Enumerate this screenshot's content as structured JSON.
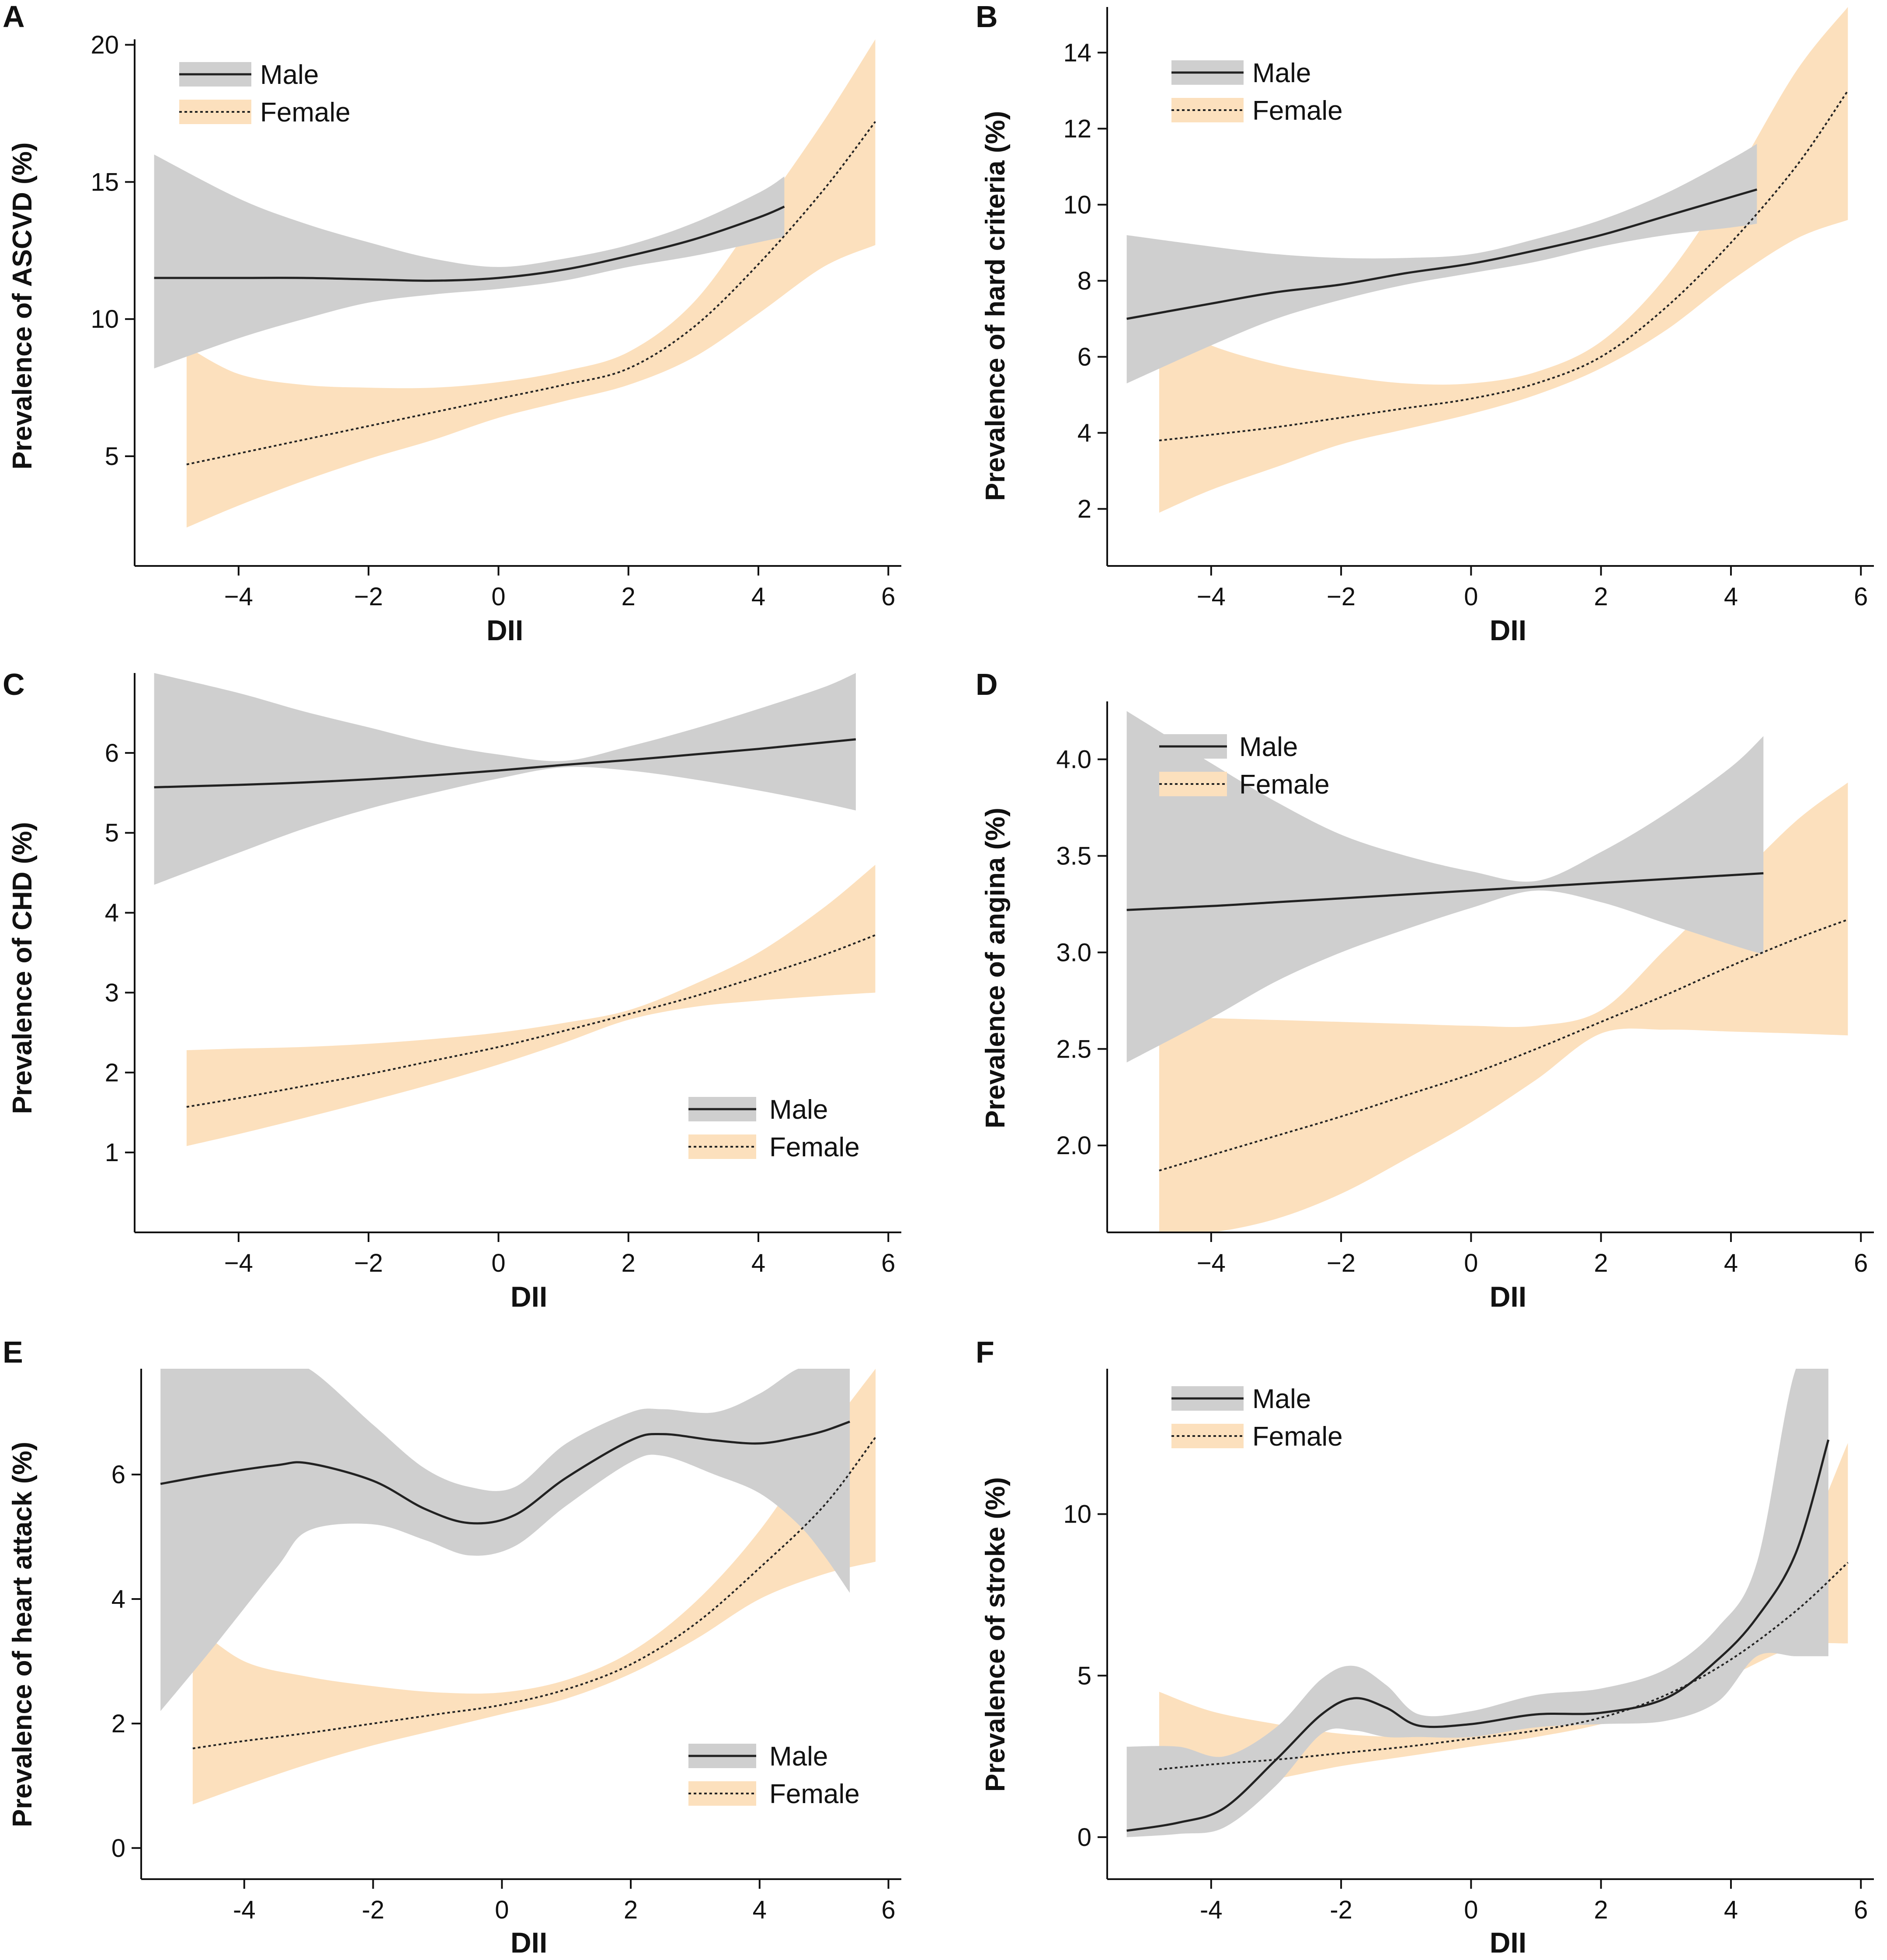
{
  "colors": {
    "male_band": "#cfcfcf",
    "female_band": "#fce0bd",
    "male_line": "#222222",
    "female_line": "#222222",
    "axis": "#111111"
  },
  "chart_data": [
    {
      "panel": "A",
      "type": "line",
      "xlabel": "DII",
      "ylabel": "Prevalence of ASCVD (%)",
      "xlim": [
        -5.6,
        6.2
      ],
      "ylim": [
        1.0,
        20.2
      ],
      "xticks": [
        -4,
        -2,
        0,
        2,
        4,
        6
      ],
      "xtick_labels": [
        "−4",
        "−2",
        "0",
        "2",
        "4",
        "6"
      ],
      "yticks": [
        5,
        10,
        15,
        20
      ],
      "ytick_labels": [
        "5",
        "10",
        "15",
        "20"
      ],
      "legend": {
        "position": "top-left",
        "entries": [
          "Male",
          "Female"
        ]
      },
      "series": [
        {
          "name": "Male",
          "style": "solid",
          "x": [
            -5.3,
            -4,
            -3,
            -2,
            -1,
            0,
            1,
            2,
            3,
            4,
            4.4
          ],
          "y": [
            11.5,
            11.5,
            11.5,
            11.45,
            11.4,
            11.5,
            11.8,
            12.3,
            12.9,
            13.7,
            14.1
          ],
          "lower": [
            8.2,
            9.3,
            10.0,
            10.6,
            10.9,
            11.1,
            11.4,
            11.9,
            12.3,
            12.8,
            13.0
          ],
          "upper": [
            16.0,
            14.4,
            13.5,
            12.8,
            12.2,
            11.9,
            12.2,
            12.7,
            13.5,
            14.6,
            15.2
          ]
        },
        {
          "name": "Female",
          "style": "dotted",
          "x": [
            -4.8,
            -4,
            -3,
            -2,
            -1,
            0,
            1,
            2,
            3,
            4,
            5,
            5.8
          ],
          "y": [
            4.7,
            5.1,
            5.6,
            6.1,
            6.6,
            7.1,
            7.6,
            8.2,
            9.7,
            12.0,
            14.7,
            17.2
          ],
          "lower": [
            2.4,
            3.2,
            4.1,
            4.9,
            5.6,
            6.4,
            7.0,
            7.6,
            8.6,
            10.2,
            11.9,
            12.7
          ],
          "upper": [
            9.0,
            8.0,
            7.6,
            7.5,
            7.5,
            7.7,
            8.1,
            8.8,
            10.6,
            13.8,
            17.2,
            20.2
          ]
        }
      ]
    },
    {
      "panel": "B",
      "type": "line",
      "xlabel": "DII",
      "ylabel": "Prevalence of hard criteria (%)",
      "xlim": [
        -5.6,
        6.2
      ],
      "ylim": [
        0.5,
        15.2
      ],
      "xticks": [
        -4,
        -2,
        0,
        2,
        4,
        6
      ],
      "xtick_labels": [
        "−4",
        "−2",
        "0",
        "2",
        "4",
        "6"
      ],
      "yticks": [
        2,
        4,
        6,
        8,
        10,
        12,
        14
      ],
      "ytick_labels": [
        "2",
        "4",
        "6",
        "8",
        "10",
        "12",
        "14"
      ],
      "legend": {
        "position": "top-left",
        "entries": [
          "Male",
          "Female"
        ]
      },
      "series": [
        {
          "name": "Male",
          "style": "solid",
          "x": [
            -5.3,
            -4,
            -3,
            -2,
            -1,
            0,
            1,
            2,
            3,
            4,
            4.4
          ],
          "y": [
            7.0,
            7.4,
            7.7,
            7.9,
            8.2,
            8.45,
            8.8,
            9.2,
            9.7,
            10.2,
            10.4
          ],
          "lower": [
            5.3,
            6.3,
            7.0,
            7.5,
            7.9,
            8.2,
            8.5,
            8.9,
            9.2,
            9.4,
            9.5
          ],
          "upper": [
            9.2,
            8.9,
            8.7,
            8.6,
            8.6,
            8.7,
            9.1,
            9.6,
            10.3,
            11.2,
            11.6
          ]
        },
        {
          "name": "Female",
          "style": "dotted",
          "x": [
            -4.8,
            -4,
            -3,
            -2,
            -1,
            0,
            1,
            2,
            3,
            4,
            5,
            5.8
          ],
          "y": [
            3.8,
            3.95,
            4.15,
            4.4,
            4.65,
            4.9,
            5.3,
            6.0,
            7.3,
            9.0,
            11.0,
            13.0
          ],
          "lower": [
            1.9,
            2.5,
            3.1,
            3.7,
            4.1,
            4.5,
            5.0,
            5.7,
            6.7,
            8.0,
            9.1,
            9.6
          ],
          "upper": [
            7.0,
            6.3,
            5.8,
            5.5,
            5.3,
            5.3,
            5.6,
            6.4,
            8.1,
            10.6,
            13.5,
            15.2
          ]
        }
      ]
    },
    {
      "panel": "C",
      "type": "line",
      "xlabel": "DII",
      "ylabel": "Prevalence of CHD (%)",
      "xlim": [
        -5.6,
        6.2
      ],
      "ylim": [
        0.0,
        7.0
      ],
      "xticks": [
        -4,
        -2,
        0,
        2,
        4,
        6
      ],
      "xtick_labels": [
        "−4",
        "−2",
        "0",
        "2",
        "4",
        "6"
      ],
      "yticks": [
        1,
        2,
        3,
        4,
        5,
        6
      ],
      "ytick_labels": [
        "1",
        "2",
        "3",
        "4",
        "5",
        "6"
      ],
      "legend": {
        "position": "bottom-right",
        "entries": [
          "Male",
          "Female"
        ]
      },
      "series": [
        {
          "name": "Male",
          "style": "solid",
          "x": [
            -5.3,
            -4,
            -3,
            -2,
            -1,
            0,
            1,
            2,
            3,
            4,
            5,
            5.5
          ],
          "y": [
            5.57,
            5.6,
            5.63,
            5.67,
            5.72,
            5.78,
            5.85,
            5.91,
            5.98,
            6.05,
            6.13,
            6.17
          ],
          "lower": [
            4.35,
            4.75,
            5.05,
            5.3,
            5.5,
            5.68,
            5.82,
            5.78,
            5.67,
            5.53,
            5.37,
            5.28
          ],
          "upper": [
            7.0,
            6.75,
            6.52,
            6.32,
            6.12,
            5.98,
            5.9,
            6.08,
            6.3,
            6.55,
            6.82,
            7.0
          ]
        },
        {
          "name": "Female",
          "style": "dotted",
          "x": [
            -4.8,
            -4,
            -3,
            -2,
            -1,
            0,
            1,
            2,
            3,
            4,
            5,
            5.8
          ],
          "y": [
            1.57,
            1.68,
            1.83,
            1.98,
            2.15,
            2.32,
            2.52,
            2.73,
            2.95,
            3.2,
            3.47,
            3.72
          ],
          "lower": [
            1.08,
            1.23,
            1.43,
            1.64,
            1.86,
            2.1,
            2.37,
            2.66,
            2.82,
            2.9,
            2.96,
            3.0
          ],
          "upper": [
            2.28,
            2.3,
            2.32,
            2.36,
            2.42,
            2.5,
            2.62,
            2.78,
            3.1,
            3.5,
            4.06,
            4.6
          ]
        }
      ]
    },
    {
      "panel": "D",
      "type": "line",
      "xlabel": "DII",
      "ylabel": "Prevalence of angina (%)",
      "xlim": [
        -5.6,
        6.2
      ],
      "ylim": [
        1.55,
        4.3
      ],
      "xticks": [
        -4,
        -2,
        0,
        2,
        4,
        6
      ],
      "xtick_labels": [
        "−4",
        "−2",
        "0",
        "2",
        "4",
        "6"
      ],
      "yticks": [
        2.0,
        2.5,
        3.0,
        3.5,
        4.0
      ],
      "ytick_labels": [
        "2.0",
        "2.5",
        "3.0",
        "3.5",
        "4.0"
      ],
      "legend": {
        "position": "top-left",
        "entries": [
          "Male",
          "Female"
        ]
      },
      "series": [
        {
          "name": "Male",
          "style": "solid",
          "x": [
            -5.3,
            -4,
            -3,
            -2,
            -1,
            0,
            1,
            2,
            3,
            4,
            4.5
          ],
          "y": [
            3.22,
            3.24,
            3.26,
            3.28,
            3.3,
            3.32,
            3.34,
            3.36,
            3.38,
            3.4,
            3.41
          ],
          "lower": [
            2.43,
            2.66,
            2.85,
            3.0,
            3.12,
            3.23,
            3.32,
            3.26,
            3.15,
            3.04,
            2.99
          ],
          "upper": [
            4.25,
            3.98,
            3.78,
            3.61,
            3.5,
            3.42,
            3.37,
            3.52,
            3.72,
            3.96,
            4.12
          ]
        },
        {
          "name": "Female",
          "style": "dotted",
          "x": [
            -4.8,
            -4,
            -3,
            -2,
            -1,
            0,
            1,
            2,
            3,
            4,
            5,
            5.8
          ],
          "y": [
            1.87,
            1.95,
            2.05,
            2.15,
            2.26,
            2.37,
            2.5,
            2.64,
            2.78,
            2.93,
            3.07,
            3.17
          ],
          "lower": [
            1.55,
            1.55,
            1.62,
            1.75,
            1.93,
            2.12,
            2.34,
            2.58,
            2.6,
            2.59,
            2.58,
            2.57
          ],
          "upper": [
            2.67,
            2.66,
            2.65,
            2.64,
            2.63,
            2.62,
            2.62,
            2.7,
            3.02,
            3.35,
            3.68,
            3.88
          ]
        }
      ]
    },
    {
      "panel": "E",
      "type": "line",
      "xlabel": "DII",
      "ylabel": "Prevalence of heart attack (%)",
      "xlim": [
        -5.6,
        6.2
      ],
      "ylim": [
        -0.5,
        7.7
      ],
      "xticks": [
        -4,
        -2,
        0,
        2,
        4,
        6
      ],
      "xtick_labels": [
        "-4",
        "-2",
        "0",
        "2",
        "4",
        "6"
      ],
      "yticks": [
        0,
        2,
        4,
        6
      ],
      "ytick_labels": [
        "0",
        "2",
        "4",
        "6"
      ],
      "legend": {
        "position": "bottom-right",
        "entries": [
          "Male",
          "Female"
        ]
      },
      "series": [
        {
          "name": "Male",
          "style": "solid",
          "x": [
            -5.3,
            -4.5,
            -3.5,
            -3,
            -2,
            -1.2,
            -0.5,
            0.2,
            1,
            2,
            2.5,
            3.3,
            4,
            4.6,
            5,
            5.4
          ],
          "y": [
            5.85,
            6.0,
            6.15,
            6.18,
            5.9,
            5.45,
            5.22,
            5.35,
            5.95,
            6.55,
            6.65,
            6.55,
            6.5,
            6.6,
            6.7,
            6.85
          ],
          "lower": [
            2.2,
            3.2,
            4.5,
            5.1,
            5.2,
            4.95,
            4.7,
            4.85,
            5.5,
            6.2,
            6.3,
            6.0,
            5.7,
            5.2,
            4.7,
            4.1
          ],
          "upper": [
            7.7,
            7.7,
            7.7,
            7.7,
            6.8,
            6.1,
            5.8,
            5.8,
            6.5,
            7.0,
            7.05,
            7.0,
            7.3,
            7.7,
            7.7,
            7.7
          ]
        },
        {
          "name": "Female",
          "style": "dotted",
          "x": [
            -4.8,
            -4,
            -3,
            -2,
            -1,
            0,
            1,
            2,
            3,
            4,
            5,
            5.8
          ],
          "y": [
            1.6,
            1.72,
            1.85,
            2.0,
            2.15,
            2.3,
            2.55,
            2.95,
            3.6,
            4.5,
            5.5,
            6.6
          ],
          "lower": [
            0.7,
            1.0,
            1.35,
            1.65,
            1.9,
            2.15,
            2.4,
            2.8,
            3.35,
            4.0,
            4.4,
            4.6
          ],
          "upper": [
            3.6,
            3.0,
            2.75,
            2.6,
            2.5,
            2.5,
            2.7,
            3.15,
            3.95,
            5.1,
            6.6,
            7.7
          ]
        }
      ]
    },
    {
      "panel": "F",
      "type": "line",
      "xlabel": "DII",
      "ylabel": "Prevalence of stroke (%)",
      "xlim": [
        -5.6,
        6.2
      ],
      "ylim": [
        -1.3,
        14.5
      ],
      "xticks": [
        -4,
        -2,
        0,
        2,
        4,
        6
      ],
      "xtick_labels": [
        "-4",
        "-2",
        "0",
        "2",
        "4",
        "6"
      ],
      "yticks": [
        0,
        5,
        10
      ],
      "ytick_labels": [
        "0",
        "5",
        "10"
      ],
      "legend": {
        "position": "top-left",
        "entries": [
          "Male",
          "Female"
        ]
      },
      "series": [
        {
          "name": "Male",
          "style": "solid",
          "x": [
            -5.3,
            -4.5,
            -3.8,
            -3,
            -2.3,
            -1.8,
            -1.3,
            -0.8,
            0,
            1,
            2,
            3,
            3.8,
            4.4,
            5,
            5.5
          ],
          "y": [
            0.2,
            0.45,
            0.9,
            2.4,
            3.8,
            4.3,
            4.0,
            3.45,
            3.5,
            3.8,
            3.85,
            4.3,
            5.5,
            6.8,
            8.8,
            12.3
          ],
          "lower": [
            0.0,
            0.1,
            0.3,
            1.6,
            3.2,
            3.3,
            3.1,
            3.1,
            3.1,
            3.4,
            3.5,
            3.6,
            4.2,
            5.6,
            5.6,
            5.6
          ],
          "upper": [
            2.8,
            2.8,
            2.5,
            3.4,
            4.9,
            5.3,
            4.7,
            3.8,
            3.9,
            4.4,
            4.6,
            5.2,
            6.5,
            8.5,
            14.5,
            14.5
          ]
        },
        {
          "name": "Female",
          "style": "dotted",
          "x": [
            -4.8,
            -4,
            -3,
            -2,
            -1,
            0,
            1,
            2,
            3,
            4,
            5,
            5.8
          ],
          "y": [
            2.1,
            2.25,
            2.4,
            2.6,
            2.8,
            3.05,
            3.3,
            3.7,
            4.4,
            5.5,
            7.0,
            8.5
          ],
          "lower": [
            1.0,
            1.4,
            1.8,
            2.2,
            2.5,
            2.8,
            3.1,
            3.5,
            4.1,
            5.0,
            5.9,
            6.0
          ],
          "upper": [
            4.5,
            3.9,
            3.5,
            3.2,
            3.1,
            3.2,
            3.5,
            3.9,
            4.8,
            6.3,
            8.6,
            12.2
          ]
        }
      ]
    }
  ]
}
